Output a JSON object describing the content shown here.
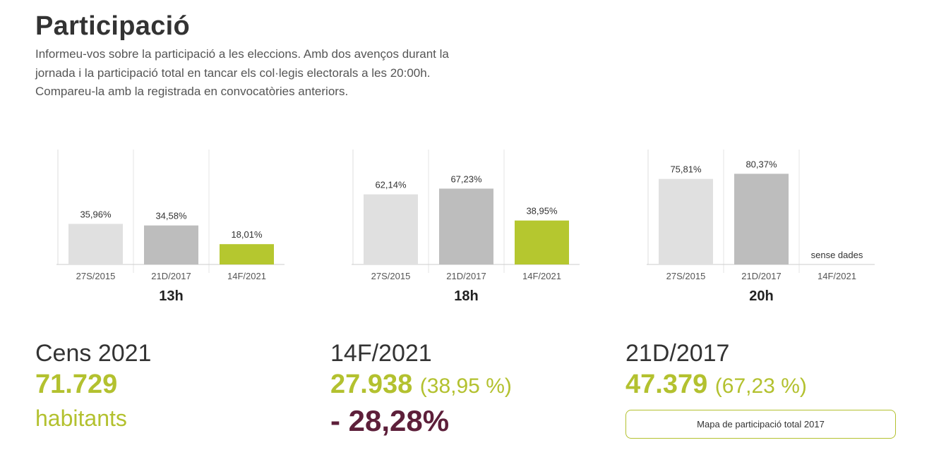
{
  "title": "Participació",
  "intro": "Informeu-vos sobre la participació a les eleccions. Amb dos avenços durant la jornada i la participació total en tancar els col·legis electorals a les 20:00h. Compareu-la amb la registrada en convocatòries anteriors.",
  "colors": {
    "prev_2015": "#e0e0e0",
    "prev_2017": "#bdbdbd",
    "current": "#b5c72f",
    "accent": "#b3c12f",
    "negative": "#5d1f3a"
  },
  "chart_data": [
    {
      "type": "bar",
      "title": "13h",
      "categories": [
        "27S/2015",
        "21D/2017",
        "14F/2021"
      ],
      "values": [
        35.96,
        34.58,
        18.01
      ],
      "labels": [
        "35,96%",
        "34,58%",
        "18,01%"
      ],
      "ylim": [
        0,
        100
      ],
      "grid": false
    },
    {
      "type": "bar",
      "title": "18h",
      "categories": [
        "27S/2015",
        "21D/2017",
        "14F/2021"
      ],
      "values": [
        62.14,
        67.23,
        38.95
      ],
      "labels": [
        "62,14%",
        "67,23%",
        "38,95%"
      ],
      "ylim": [
        0,
        100
      ],
      "grid": false
    },
    {
      "type": "bar",
      "title": "20h",
      "categories": [
        "27S/2015",
        "21D/2017",
        "14F/2021"
      ],
      "values": [
        75.81,
        80.37,
        null
      ],
      "labels": [
        "75,81%",
        "80,37%",
        "sense dades"
      ],
      "ylim": [
        0,
        100
      ],
      "grid": false
    }
  ],
  "stats": {
    "census": {
      "label": "Cens 2021",
      "value": "71.729",
      "unit": "habitants"
    },
    "current": {
      "label": "14F/2021",
      "value": "27.938",
      "pct": "(38,95 %)",
      "change": "- 28,28%"
    },
    "previous": {
      "label": "21D/2017",
      "value": "47.379",
      "pct": "(67,23 %)"
    }
  },
  "map_button_label": "Mapa de participació total 2017"
}
